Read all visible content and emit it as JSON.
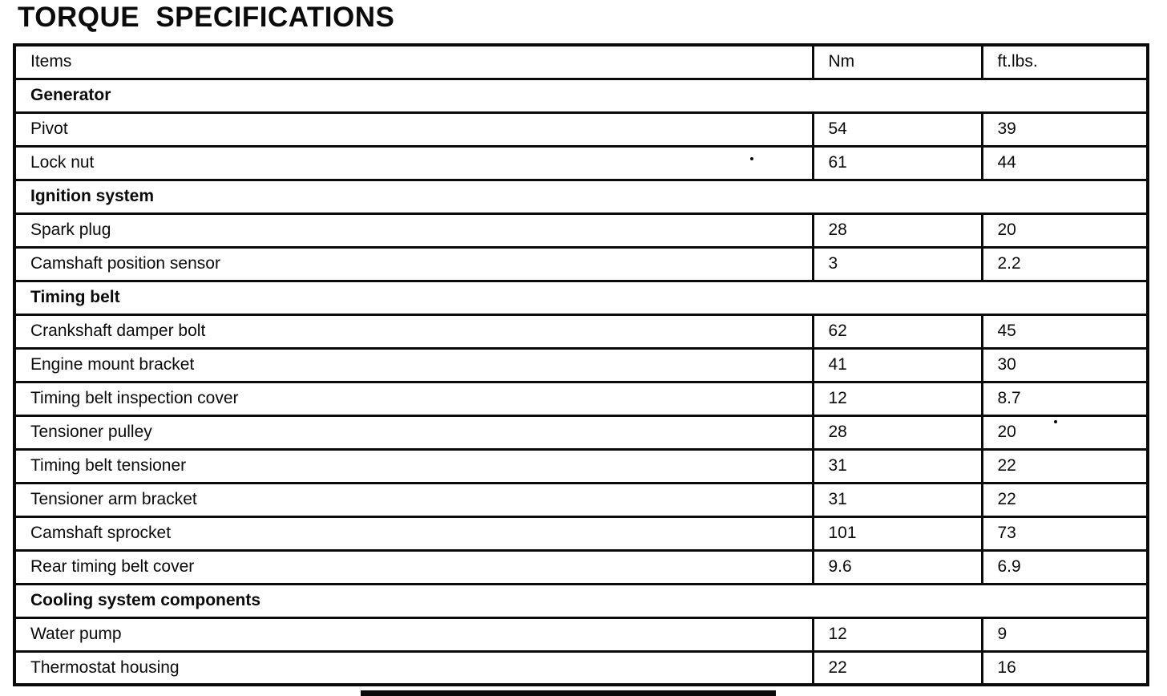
{
  "document": {
    "title": "TORQUE SPECIFICATIONS"
  },
  "torque_table": {
    "columns": {
      "items": "Items",
      "nm": "Nm",
      "ftlbs": "ft.lbs."
    },
    "sections": [
      {
        "header": "Generator",
        "rows": [
          {
            "item": "Pivot",
            "nm": "54",
            "ftlbs": "39"
          },
          {
            "item": "Lock nut",
            "nm": "61",
            "ftlbs": "44"
          }
        ]
      },
      {
        "header": "Ignition system",
        "rows": [
          {
            "item": "Spark plug",
            "nm": "28",
            "ftlbs": "20"
          },
          {
            "item": "Camshaft position sensor",
            "nm": "3",
            "ftlbs": "2.2"
          }
        ]
      },
      {
        "header": "Timing belt",
        "rows": [
          {
            "item": "Crankshaft damper bolt",
            "nm": "62",
            "ftlbs": "45"
          },
          {
            "item": "Engine mount bracket",
            "nm": "41",
            "ftlbs": "30"
          },
          {
            "item": "Timing belt inspection cover",
            "nm": "12",
            "ftlbs": "8.7"
          },
          {
            "item": "Tensioner pulley",
            "nm": "28",
            "ftlbs": "20"
          },
          {
            "item": "Timing belt tensioner",
            "nm": "31",
            "ftlbs": "22"
          },
          {
            "item": "Tensioner arm bracket",
            "nm": "31",
            "ftlbs": "22"
          },
          {
            "item": "Camshaft sprocket",
            "nm": "101",
            "ftlbs": "73"
          },
          {
            "item": "Rear timing belt cover",
            "nm": "9.6",
            "ftlbs": "6.9"
          }
        ]
      },
      {
        "header": "Cooling system components",
        "rows": [
          {
            "item": "Water pump",
            "nm": "12",
            "ftlbs": "9"
          },
          {
            "item": "Thermostat housing",
            "nm": "22",
            "ftlbs": "16"
          }
        ]
      }
    ]
  }
}
